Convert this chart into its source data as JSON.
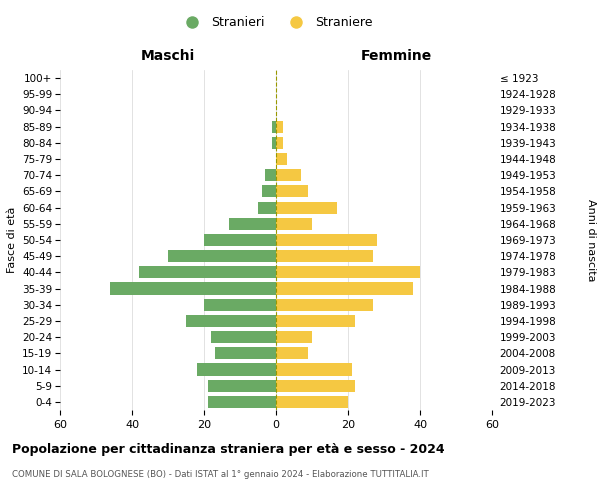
{
  "age_groups": [
    "0-4",
    "5-9",
    "10-14",
    "15-19",
    "20-24",
    "25-29",
    "30-34",
    "35-39",
    "40-44",
    "45-49",
    "50-54",
    "55-59",
    "60-64",
    "65-69",
    "70-74",
    "75-79",
    "80-84",
    "85-89",
    "90-94",
    "95-99",
    "100+"
  ],
  "birth_years": [
    "2019-2023",
    "2014-2018",
    "2009-2013",
    "2004-2008",
    "1999-2003",
    "1994-1998",
    "1989-1993",
    "1984-1988",
    "1979-1983",
    "1974-1978",
    "1969-1973",
    "1964-1968",
    "1959-1963",
    "1954-1958",
    "1949-1953",
    "1944-1948",
    "1939-1943",
    "1934-1938",
    "1929-1933",
    "1924-1928",
    "≤ 1923"
  ],
  "males": [
    19,
    19,
    22,
    17,
    18,
    25,
    20,
    46,
    38,
    30,
    20,
    13,
    5,
    4,
    3,
    0,
    1,
    1,
    0,
    0,
    0
  ],
  "females": [
    20,
    22,
    21,
    9,
    10,
    22,
    27,
    38,
    40,
    27,
    28,
    10,
    17,
    9,
    7,
    3,
    2,
    2,
    0,
    0,
    0
  ],
  "male_color": "#6aaa64",
  "female_color": "#f5c842",
  "background_color": "#ffffff",
  "grid_color": "#cccccc",
  "title": "Popolazione per cittadinanza straniera per età e sesso - 2024",
  "subtitle": "COMUNE DI SALA BOLOGNESE (BO) - Dati ISTAT al 1° gennaio 2024 - Elaborazione TUTTITALIA.IT",
  "xlabel_left": "Maschi",
  "xlabel_right": "Femmine",
  "ylabel_left": "Fasce di età",
  "ylabel_right": "Anni di nascita",
  "legend_male": "Stranieri",
  "legend_female": "Straniere",
  "xlim": 60
}
